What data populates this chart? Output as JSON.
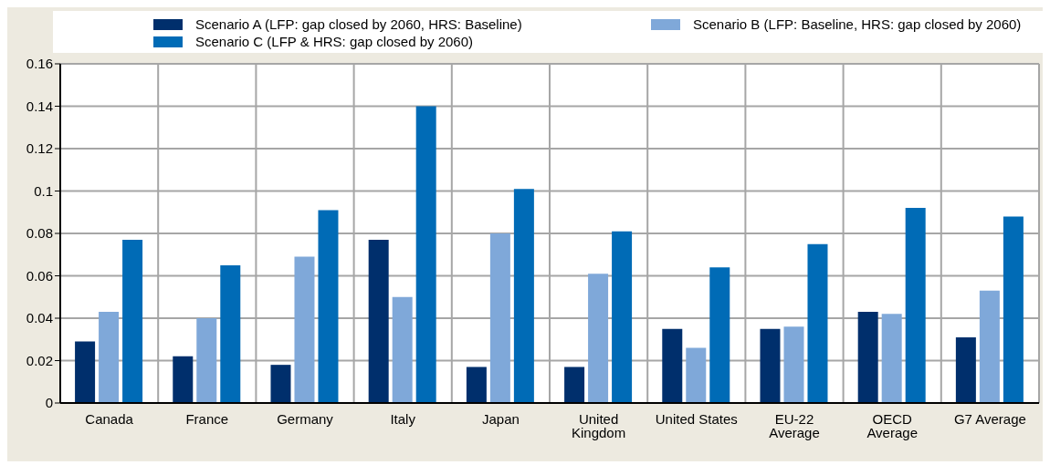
{
  "chart_data": {
    "type": "bar",
    "categories": [
      "Canada",
      "France",
      "Germany",
      "Italy",
      "Japan",
      "United Kingdom",
      "United States",
      "EU-22 Average",
      "OECD Average",
      "G7 Average"
    ],
    "series": [
      {
        "name": "Scenario A (LFP:  gap closed by 2060, HRS: Baseline)",
        "color": "#002f6c",
        "values": [
          0.029,
          0.022,
          0.018,
          0.077,
          0.017,
          0.017,
          0.035,
          0.035,
          0.043,
          0.031
        ]
      },
      {
        "name": "Scenario B (LFP: Baseline, HRS: gap closed by 2060)",
        "color": "#7fa8d9",
        "values": [
          0.043,
          0.04,
          0.069,
          0.05,
          0.08,
          0.061,
          0.026,
          0.036,
          0.042,
          0.053
        ]
      },
      {
        "name": "Scenario C (LFP & HRS:  gap closed by 2060)",
        "color": "#006bb6",
        "values": [
          0.077,
          0.065,
          0.091,
          0.14,
          0.101,
          0.081,
          0.064,
          0.075,
          0.092,
          0.088
        ]
      }
    ],
    "ylim": [
      0,
      0.16
    ],
    "yticks": [
      0,
      0.02,
      0.04,
      0.06,
      0.08,
      0.1,
      0.12,
      0.14,
      0.16
    ],
    "grid": true,
    "legend": "top"
  }
}
